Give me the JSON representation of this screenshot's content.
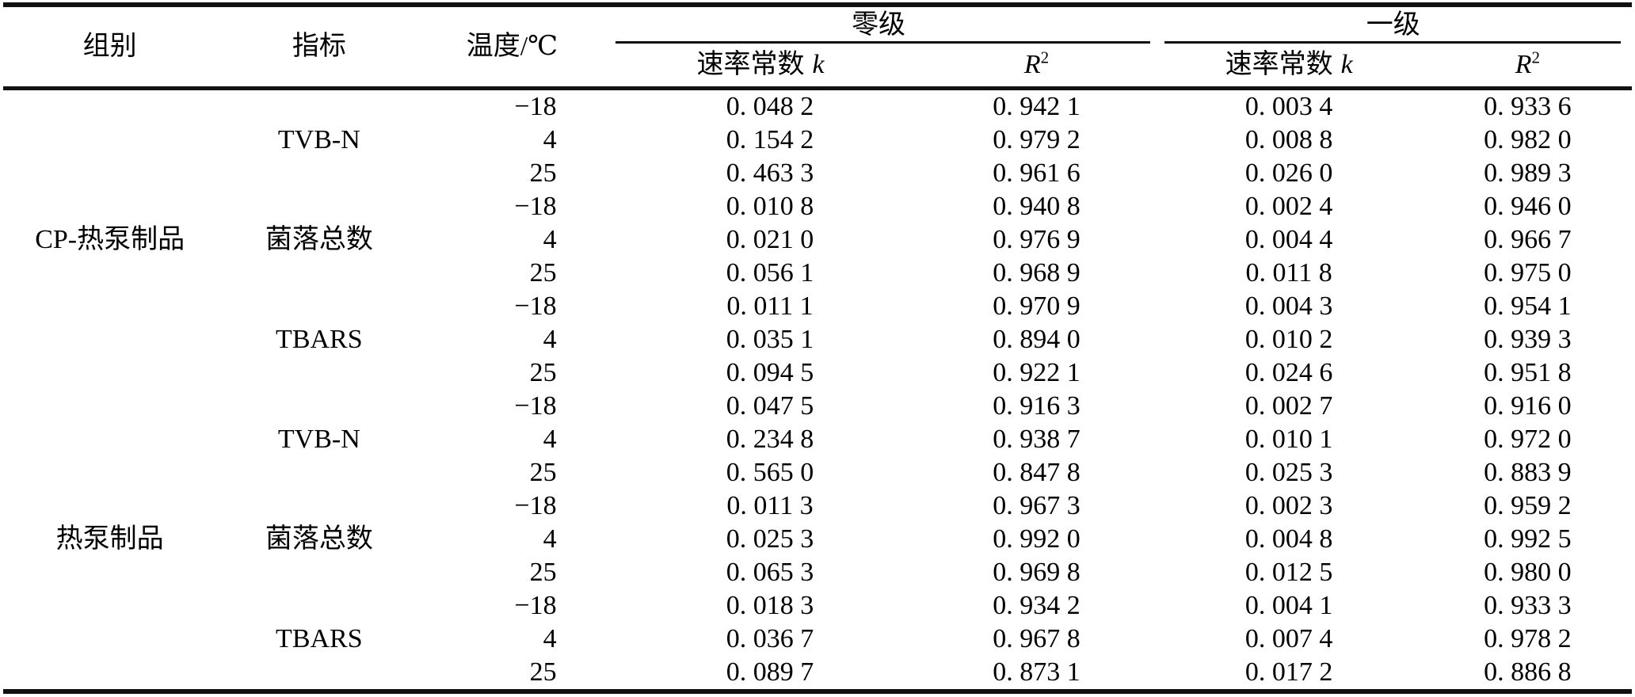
{
  "page": {
    "background": "#ffffff",
    "text_color": "#000000",
    "rule_color": "#111111"
  },
  "table": {
    "header": {
      "col_group": "组别",
      "col_indicator": "指标",
      "col_temperature": "温度/℃",
      "order_zero": "零级",
      "order_first": "一级",
      "rate_constant_label": "速率常数",
      "rate_constant_symbol": "k",
      "r_squared_base": "R",
      "r_squared_exp": "2"
    },
    "groups": [
      {
        "label": "CP-热泵制品",
        "indicators": [
          {
            "label": "TVB-N",
            "rows": [
              {
                "temperature": "−18",
                "zero_k": "0. 048 2",
                "zero_r2": "0. 942 1",
                "first_k": "0. 003 4",
                "first_r2": "0. 933 6"
              },
              {
                "temperature": "4",
                "zero_k": "0. 154 2",
                "zero_r2": "0. 979 2",
                "first_k": "0. 008 8",
                "first_r2": "0. 982 0"
              },
              {
                "temperature": "25",
                "zero_k": "0. 463 3",
                "zero_r2": "0. 961 6",
                "first_k": "0. 026 0",
                "first_r2": "0. 989 3"
              }
            ]
          },
          {
            "label": "菌落总数",
            "rows": [
              {
                "temperature": "−18",
                "zero_k": "0. 010 8",
                "zero_r2": "0. 940 8",
                "first_k": "0. 002 4",
                "first_r2": "0. 946 0"
              },
              {
                "temperature": "4",
                "zero_k": "0. 021 0",
                "zero_r2": "0. 976 9",
                "first_k": "0. 004 4",
                "first_r2": "0. 966 7"
              },
              {
                "temperature": "25",
                "zero_k": "0. 056 1",
                "zero_r2": "0. 968 9",
                "first_k": "0. 011 8",
                "first_r2": "0. 975 0"
              }
            ]
          },
          {
            "label": "TBARS",
            "rows": [
              {
                "temperature": "−18",
                "zero_k": "0. 011 1",
                "zero_r2": "0. 970 9",
                "first_k": "0. 004 3",
                "first_r2": "0. 954 1"
              },
              {
                "temperature": "4",
                "zero_k": "0. 035 1",
                "zero_r2": "0. 894 0",
                "first_k": "0. 010 2",
                "first_r2": "0. 939 3"
              },
              {
                "temperature": "25",
                "zero_k": "0. 094 5",
                "zero_r2": "0. 922 1",
                "first_k": "0. 024 6",
                "first_r2": "0. 951 8"
              }
            ]
          }
        ]
      },
      {
        "label": "热泵制品",
        "indicators": [
          {
            "label": "TVB-N",
            "rows": [
              {
                "temperature": "−18",
                "zero_k": "0. 047 5",
                "zero_r2": "0. 916 3",
                "first_k": "0. 002 7",
                "first_r2": "0. 916 0"
              },
              {
                "temperature": "4",
                "zero_k": "0. 234 8",
                "zero_r2": "0. 938 7",
                "first_k": "0. 010 1",
                "first_r2": "0. 972 0"
              },
              {
                "temperature": "25",
                "zero_k": "0. 565 0",
                "zero_r2": "0. 847 8",
                "first_k": "0. 025 3",
                "first_r2": "0. 883 9"
              }
            ]
          },
          {
            "label": "菌落总数",
            "rows": [
              {
                "temperature": "−18",
                "zero_k": "0. 011 3",
                "zero_r2": "0. 967 3",
                "first_k": "0. 002 3",
                "first_r2": "0. 959 2"
              },
              {
                "temperature": "4",
                "zero_k": "0. 025 3",
                "zero_r2": "0. 992 0",
                "first_k": "0. 004 8",
                "first_r2": "0. 992 5"
              },
              {
                "temperature": "25",
                "zero_k": "0. 065 3",
                "zero_r2": "0. 969 8",
                "first_k": "0. 012 5",
                "first_r2": "0. 980 0"
              }
            ]
          },
          {
            "label": "TBARS",
            "rows": [
              {
                "temperature": "−18",
                "zero_k": "0. 018 3",
                "zero_r2": "0. 934 2",
                "first_k": "0. 004 1",
                "first_r2": "0. 933 3"
              },
              {
                "temperature": "4",
                "zero_k": "0. 036 7",
                "zero_r2": "0. 967 8",
                "first_k": "0. 007 4",
                "first_r2": "0. 978 2"
              },
              {
                "temperature": "25",
                "zero_k": "0. 089 7",
                "zero_r2": "0. 873 1",
                "first_k": "0. 017 2",
                "first_r2": "0. 886 8"
              }
            ]
          }
        ]
      }
    ]
  }
}
